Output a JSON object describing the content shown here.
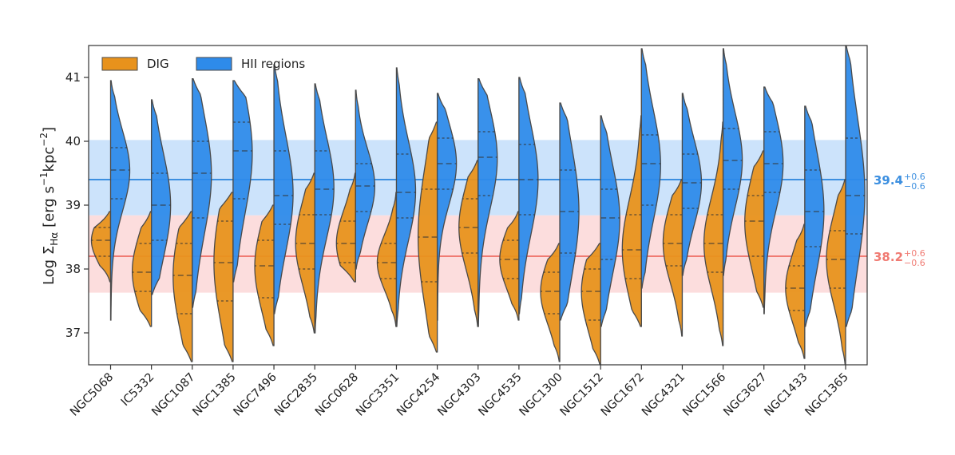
{
  "chart_data": {
    "type": "violin",
    "title": "",
    "xlabel": "",
    "ylabel_main": "Log Σ",
    "ylabel_sub": "Hα",
    "ylabel_units": "[erg s",
    "ylabel_units_exp": "−1",
    "ylabel_units_mid": "kpc",
    "ylabel_units_exp2": "−2",
    "ylabel_units_end": "]",
    "ylim": [
      36.5,
      41.5
    ],
    "yticks": [
      "37",
      "38",
      "39",
      "40",
      "41"
    ],
    "ytick_values": [
      37,
      38,
      39,
      40,
      41
    ],
    "legend_position": "top-left",
    "colors": {
      "dig": "#E8921C",
      "hii": "#2E8BEA",
      "hii_band": "#CCE3FB",
      "dig_band": "#FCDDDD",
      "hii_line": "#3C8FE0",
      "dig_line": "#F07B73",
      "outline": "#4a4a4a"
    },
    "series": [
      {
        "key": "dig",
        "name": "DIG"
      },
      {
        "key": "hii",
        "name": "HII regions"
      }
    ],
    "reference_lines": [
      {
        "key": "hii",
        "value": 39.4,
        "band": [
          38.84,
          40.02
        ],
        "label": "39.4",
        "sup": "+0.6",
        "sub": "−0.6"
      },
      {
        "key": "dig",
        "value": 38.2,
        "band": [
          37.63,
          38.84
        ],
        "label": "38.2",
        "sup": "+0.6",
        "sub": "−0.6"
      }
    ],
    "categories": [
      "NGC5068",
      "IC5332",
      "NGC1087",
      "NGC1385",
      "NGC7496",
      "NGC2835",
      "NGC0628",
      "NGC3351",
      "NGC4254",
      "NGC4303",
      "NGC4535",
      "NGC1300",
      "NGC1512",
      "NGC1672",
      "NGC4321",
      "NGC1566",
      "NGC3627",
      "NGC1433",
      "NGC1365"
    ],
    "galaxies": [
      {
        "name": "NGC5068",
        "dig": {
          "min": 37.8,
          "max": 38.9,
          "q1": 38.2,
          "med": 38.45,
          "q3": 38.65
        },
        "hii": {
          "min": 37.2,
          "max": 40.95,
          "q1": 39.1,
          "med": 39.55,
          "q3": 39.9
        }
      },
      {
        "name": "IC5332",
        "dig": {
          "min": 37.1,
          "max": 38.9,
          "q1": 37.65,
          "med": 37.95,
          "q3": 38.4
        },
        "hii": {
          "min": 37.6,
          "max": 40.65,
          "q1": 38.45,
          "med": 39.0,
          "q3": 39.5
        }
      },
      {
        "name": "NGC1087",
        "dig": {
          "min": 36.55,
          "max": 38.9,
          "q1": 37.3,
          "med": 37.9,
          "q3": 38.4
        },
        "hii": {
          "min": 37.4,
          "max": 40.98,
          "q1": 38.8,
          "med": 39.5,
          "q3": 40.0
        }
      },
      {
        "name": "NGC1385",
        "dig": {
          "min": 36.55,
          "max": 39.2,
          "q1": 37.5,
          "med": 38.1,
          "q3": 38.75
        },
        "hii": {
          "min": 37.8,
          "max": 40.95,
          "q1": 39.1,
          "med": 39.85,
          "q3": 40.3
        }
      },
      {
        "name": "NGC7496",
        "dig": {
          "min": 36.8,
          "max": 39.0,
          "q1": 37.55,
          "med": 38.05,
          "q3": 38.45
        },
        "hii": {
          "min": 37.3,
          "max": 41.2,
          "q1": 38.7,
          "med": 39.15,
          "q3": 39.85
        }
      },
      {
        "name": "NGC2835",
        "dig": {
          "min": 37.0,
          "max": 39.5,
          "q1": 38.0,
          "med": 38.4,
          "q3": 38.85
        },
        "hii": {
          "min": 37.0,
          "max": 40.9,
          "q1": 38.85,
          "med": 39.25,
          "q3": 39.85
        }
      },
      {
        "name": "NGC0628",
        "dig": {
          "min": 37.8,
          "max": 39.5,
          "q1": 38.1,
          "med": 38.4,
          "q3": 38.75
        },
        "hii": {
          "min": 38.0,
          "max": 40.8,
          "q1": 38.9,
          "med": 39.3,
          "q3": 39.65
        }
      },
      {
        "name": "NGC3351",
        "dig": {
          "min": 37.1,
          "max": 39.2,
          "q1": 37.85,
          "med": 38.1,
          "q3": 38.4
        },
        "hii": {
          "min": 37.1,
          "max": 41.15,
          "q1": 38.8,
          "med": 39.2,
          "q3": 39.8
        }
      },
      {
        "name": "NGC4254",
        "dig": {
          "min": 36.7,
          "max": 40.3,
          "q1": 37.8,
          "med": 38.5,
          "q3": 39.25
        },
        "hii": {
          "min": 37.2,
          "max": 40.75,
          "q1": 39.25,
          "med": 39.65,
          "q3": 40.05
        }
      },
      {
        "name": "NGC4303",
        "dig": {
          "min": 37.1,
          "max": 39.7,
          "q1": 38.25,
          "med": 38.65,
          "q3": 39.1
        },
        "hii": {
          "min": 37.1,
          "max": 40.98,
          "q1": 39.15,
          "med": 39.75,
          "q3": 40.15
        }
      },
      {
        "name": "NGC4535",
        "dig": {
          "min": 37.2,
          "max": 38.9,
          "q1": 37.85,
          "med": 38.15,
          "q3": 38.45
        },
        "hii": {
          "min": 37.3,
          "max": 41.0,
          "q1": 38.85,
          "med": 39.4,
          "q3": 39.95
        }
      },
      {
        "name": "NGC1300",
        "dig": {
          "min": 36.55,
          "max": 38.4,
          "q1": 37.3,
          "med": 37.65,
          "q3": 37.95
        },
        "hii": {
          "min": 37.2,
          "max": 40.6,
          "q1": 38.25,
          "med": 38.9,
          "q3": 39.55
        }
      },
      {
        "name": "NGC1512",
        "dig": {
          "min": 36.5,
          "max": 38.4,
          "q1": 37.2,
          "med": 37.65,
          "q3": 38.0
        },
        "hii": {
          "min": 37.1,
          "max": 40.4,
          "q1": 38.15,
          "med": 38.8,
          "q3": 39.25
        }
      },
      {
        "name": "NGC1672",
        "dig": {
          "min": 37.1,
          "max": 40.4,
          "q1": 37.85,
          "med": 38.3,
          "q3": 38.85
        },
        "hii": {
          "min": 37.7,
          "max": 41.45,
          "q1": 39.0,
          "med": 39.65,
          "q3": 40.1
        }
      },
      {
        "name": "NGC4321",
        "dig": {
          "min": 36.95,
          "max": 39.4,
          "q1": 38.05,
          "med": 38.4,
          "q3": 38.85
        },
        "hii": {
          "min": 37.9,
          "max": 40.75,
          "q1": 38.95,
          "med": 39.35,
          "q3": 39.8
        }
      },
      {
        "name": "NGC1566",
        "dig": {
          "min": 36.8,
          "max": 40.3,
          "q1": 37.95,
          "med": 38.4,
          "q3": 38.85
        },
        "hii": {
          "min": 37.9,
          "max": 41.45,
          "q1": 39.25,
          "med": 39.7,
          "q3": 40.2
        }
      },
      {
        "name": "NGC3627",
        "dig": {
          "min": 37.4,
          "max": 39.85,
          "q1": 38.2,
          "med": 38.75,
          "q3": 39.15
        },
        "hii": {
          "min": 37.3,
          "max": 40.85,
          "q1": 39.2,
          "med": 39.65,
          "q3": 40.15
        }
      },
      {
        "name": "NGC1433",
        "dig": {
          "min": 36.6,
          "max": 38.7,
          "q1": 37.35,
          "med": 37.7,
          "q3": 38.05
        },
        "hii": {
          "min": 37.1,
          "max": 40.55,
          "q1": 38.35,
          "med": 38.9,
          "q3": 39.55
        }
      },
      {
        "name": "NGC1365",
        "dig": {
          "min": 36.5,
          "max": 39.4,
          "q1": 37.7,
          "med": 38.15,
          "q3": 38.6
        },
        "hii": {
          "min": 37.1,
          "max": 41.5,
          "q1": 38.55,
          "med": 39.15,
          "q3": 40.05
        }
      }
    ]
  }
}
